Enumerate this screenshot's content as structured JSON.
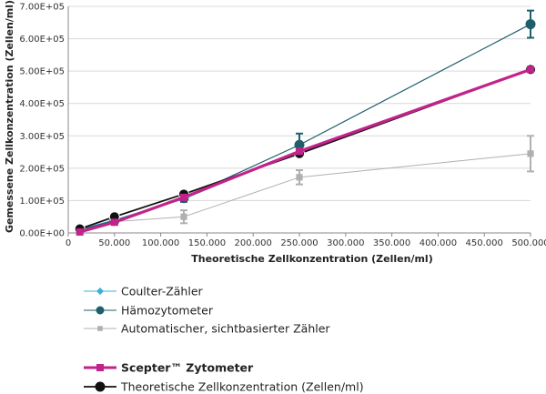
{
  "chart_data": {
    "type": "line",
    "xlabel": "Theoretische Zellkonzentration (Zellen/ml)",
    "ylabel": "Gemessene Zellkonzentration (Zellen/ml)",
    "xlim": [
      0,
      500000
    ],
    "ylim": [
      0,
      700000
    ],
    "x_ticks": [
      0,
      50000,
      100000,
      150000,
      200000,
      250000,
      300000,
      350000,
      400000,
      450000,
      500000
    ],
    "x_tick_labels": [
      "0",
      "50.000",
      "100.000",
      "150.000",
      "200.000",
      "250.000",
      "300.000",
      "350.000",
      "400.000",
      "450.000",
      "500.000"
    ],
    "y_ticks": [
      0,
      100000,
      200000,
      300000,
      400000,
      500000,
      600000,
      700000
    ],
    "y_tick_labels": [
      "0.00E+00",
      "1.00E+05",
      "2.00E+05",
      "3.00E+05",
      "4.00E+05",
      "5.00E+05",
      "6.00E+05",
      "7.00E+05"
    ],
    "grid": "horizontal",
    "legend_position": "bottom",
    "series": [
      {
        "name": "Coulter-Zähler",
        "color": "#3ab0d8",
        "marker": "diamond",
        "x": [
          12500,
          50000,
          125000,
          250000,
          500000
        ],
        "y": [
          11000,
          40000,
          105000,
          255000,
          505000
        ],
        "err": [
          0,
          0,
          0,
          0,
          0
        ]
      },
      {
        "name": "Hämozytometer",
        "color": "#1f5f6b",
        "marker": "circle",
        "x": [
          12500,
          50000,
          125000,
          250000,
          500000
        ],
        "y": [
          10000,
          38000,
          108000,
          272000,
          645000
        ],
        "err": [
          3000,
          5000,
          12000,
          35000,
          42000
        ]
      },
      {
        "name": "Automatischer, sichtbasierter Zähler",
        "color": "#b0b0b0",
        "marker": "square",
        "x": [
          12500,
          50000,
          125000,
          250000,
          500000
        ],
        "y": [
          10000,
          35000,
          50000,
          172000,
          245000
        ],
        "err": [
          4000,
          8000,
          20000,
          22000,
          55000
        ]
      },
      {
        "name": "Scepter™ Zytometer",
        "color": "#c2238b",
        "marker": "square",
        "x": [
          12500,
          50000,
          125000,
          250000,
          500000
        ],
        "y": [
          3000,
          33000,
          110000,
          252000,
          505000
        ],
        "err": [
          0,
          0,
          0,
          0,
          0
        ]
      },
      {
        "name": "Theoretische Zellkonzentration (Zellen/ml)",
        "color": "#111111",
        "marker": "circle",
        "x": [
          12500,
          50000,
          125000,
          250000,
          500000
        ],
        "y": [
          12500,
          50000,
          120000,
          245000,
          505000
        ],
        "err": [
          0,
          0,
          0,
          0,
          0
        ]
      }
    ]
  }
}
